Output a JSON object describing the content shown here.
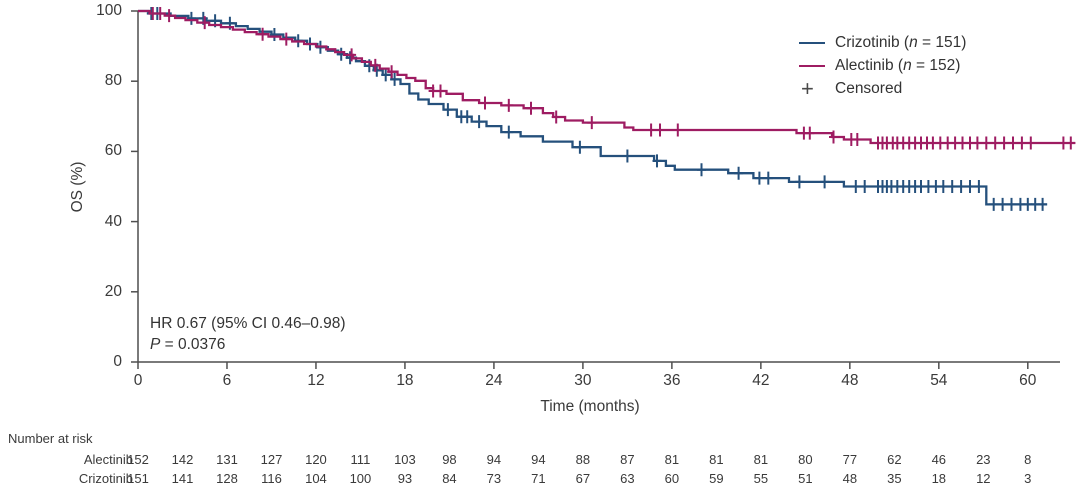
{
  "chart_data": {
    "type": "line",
    "subtype": "kaplan-meier-step",
    "title": "",
    "xlabel": "Time (months)",
    "ylabel": "OS (%)",
    "xlim": [
      0,
      62
    ],
    "ylim": [
      0,
      100
    ],
    "x_ticks": [
      0,
      6,
      12,
      18,
      24,
      30,
      36,
      42,
      48,
      54,
      60
    ],
    "y_ticks": [
      0,
      20,
      40,
      60,
      80,
      100
    ],
    "grid": false,
    "legend_position": "top-right",
    "series": [
      {
        "name": "Crizotinib",
        "n": 151,
        "color": "#25507C",
        "end_t": 61.3,
        "steps": [
          [
            0.7,
            99.3
          ],
          [
            2.2,
            98.6
          ],
          [
            3.4,
            97.9
          ],
          [
            4.6,
            97.2
          ],
          [
            5.6,
            96.5
          ],
          [
            6.6,
            95.7
          ],
          [
            7.4,
            94.9
          ],
          [
            8.2,
            94.1
          ],
          [
            9.0,
            93.3
          ],
          [
            9.8,
            92.4
          ],
          [
            10.6,
            91.5
          ],
          [
            11.4,
            90.6
          ],
          [
            12.1,
            89.7
          ],
          [
            12.8,
            88.7
          ],
          [
            13.5,
            87.7
          ],
          [
            14.1,
            86.7
          ],
          [
            14.7,
            85.7
          ],
          [
            15.3,
            84.4
          ],
          [
            15.9,
            83.1
          ],
          [
            16.5,
            81.8
          ],
          [
            17.1,
            80.5
          ],
          [
            17.7,
            79.2
          ],
          [
            18.3,
            76.5
          ],
          [
            18.9,
            74.8
          ],
          [
            19.6,
            73.5
          ],
          [
            20.6,
            71.9
          ],
          [
            21.5,
            69.9
          ],
          [
            22.5,
            68.5
          ],
          [
            23.5,
            67.2
          ],
          [
            24.5,
            65.5
          ],
          [
            25.8,
            64.3
          ],
          [
            27.3,
            62.8
          ],
          [
            29.3,
            61.2
          ],
          [
            31.2,
            58.7
          ],
          [
            34.8,
            57.3
          ],
          [
            35.6,
            55.9
          ],
          [
            36.2,
            54.8
          ],
          [
            39.8,
            53.8
          ],
          [
            41.5,
            52.4
          ],
          [
            43.9,
            51.3
          ],
          [
            47.6,
            50.0
          ],
          [
            57.2,
            44.9
          ]
        ],
        "censor_t": [
          0.9,
          1.3,
          3.6,
          4.4,
          5.2,
          6.2,
          9.2,
          10.8,
          11.6,
          12.3,
          13.7,
          14.3,
          15.6,
          16.1,
          16.7,
          17.3,
          20.9,
          21.8,
          22.2,
          23.0,
          25.0,
          29.8,
          33.0,
          35.0,
          38.0,
          40.5,
          41.9,
          42.5,
          44.6,
          46.3,
          48.4,
          49.0,
          49.9,
          50.2,
          50.5,
          50.8,
          51.2,
          51.6,
          52.0,
          52.4,
          52.8,
          53.3,
          53.8,
          54.3,
          54.9,
          55.5,
          56.1,
          56.7,
          57.7,
          58.3,
          58.9,
          59.5,
          60.0,
          60.5,
          61.0
        ]
      },
      {
        "name": "Alectinib",
        "n": 152,
        "color": "#9E1C62",
        "end_t": 63.2,
        "steps": [
          [
            0.8,
            99.3
          ],
          [
            1.8,
            98.7
          ],
          [
            2.5,
            98.0
          ],
          [
            3.2,
            97.4
          ],
          [
            4.0,
            96.7
          ],
          [
            4.8,
            96.0
          ],
          [
            5.6,
            95.4
          ],
          [
            6.4,
            94.7
          ],
          [
            7.2,
            94.0
          ],
          [
            8.0,
            93.4
          ],
          [
            8.8,
            92.7
          ],
          [
            9.6,
            92.0
          ],
          [
            10.4,
            91.3
          ],
          [
            11.2,
            90.6
          ],
          [
            12.0,
            89.9
          ],
          [
            12.7,
            89.1
          ],
          [
            13.3,
            88.3
          ],
          [
            13.9,
            87.5
          ],
          [
            14.5,
            86.5
          ],
          [
            15.1,
            85.5
          ],
          [
            15.7,
            84.5
          ],
          [
            16.3,
            83.6
          ],
          [
            16.9,
            82.7
          ],
          [
            17.5,
            81.8
          ],
          [
            18.1,
            80.9
          ],
          [
            18.7,
            80.1
          ],
          [
            19.4,
            78.0
          ],
          [
            19.9,
            77.2
          ],
          [
            20.8,
            76.4
          ],
          [
            21.9,
            74.6
          ],
          [
            23.0,
            73.8
          ],
          [
            24.5,
            73.1
          ],
          [
            26.0,
            72.3
          ],
          [
            27.3,
            70.9
          ],
          [
            28.0,
            69.8
          ],
          [
            28.8,
            68.8
          ],
          [
            30.0,
            68.2
          ],
          [
            32.8,
            66.8
          ],
          [
            33.4,
            66.1
          ],
          [
            44.4,
            65.2
          ],
          [
            46.8,
            64.1
          ],
          [
            47.6,
            63.4
          ],
          [
            49.4,
            62.4
          ]
        ],
        "censor_t": [
          1.0,
          1.5,
          2.1,
          4.5,
          8.4,
          10.0,
          14.4,
          16.0,
          17.1,
          19.9,
          20.4,
          23.4,
          25.0,
          26.5,
          28.2,
          30.6,
          34.6,
          35.2,
          36.4,
          44.9,
          45.3,
          46.9,
          48.1,
          48.5,
          49.9,
          50.2,
          50.5,
          50.9,
          51.2,
          51.6,
          52.0,
          52.4,
          52.8,
          53.2,
          53.6,
          54.1,
          54.6,
          55.1,
          55.6,
          56.1,
          56.6,
          57.2,
          57.8,
          58.4,
          59.0,
          59.6,
          60.2,
          62.4,
          62.9
        ]
      }
    ],
    "annotation": {
      "hr": "HR 0.67 (95% CI 0.46–0.98)",
      "p_var": "P",
      "p_rest": " = 0.0376"
    },
    "legend": {
      "items": [
        {
          "marker": "line",
          "color": "#25507C",
          "pre": "Crizotinib (",
          "var": "n",
          "post": " = 151)"
        },
        {
          "marker": "line",
          "color": "#9E1C62",
          "pre": "Alectinib (",
          "var": "n",
          "post": " = 152)"
        },
        {
          "marker": "plus",
          "color": "#4a4a4a",
          "pre": "Censored",
          "var": "",
          "post": ""
        }
      ]
    },
    "risk_table": {
      "title": "Number at risk",
      "time_start": 0,
      "time_step": 3,
      "rows": [
        {
          "label": "Alectinib",
          "values": [
            152,
            142,
            131,
            127,
            120,
            111,
            103,
            98,
            94,
            94,
            88,
            87,
            81,
            81,
            81,
            80,
            77,
            62,
            46,
            23,
            8
          ]
        },
        {
          "label": "Crizotinib",
          "values": [
            151,
            141,
            128,
            116,
            104,
            100,
            93,
            84,
            73,
            71,
            67,
            63,
            60,
            59,
            55,
            51,
            48,
            35,
            18,
            12,
            3
          ]
        }
      ]
    }
  }
}
